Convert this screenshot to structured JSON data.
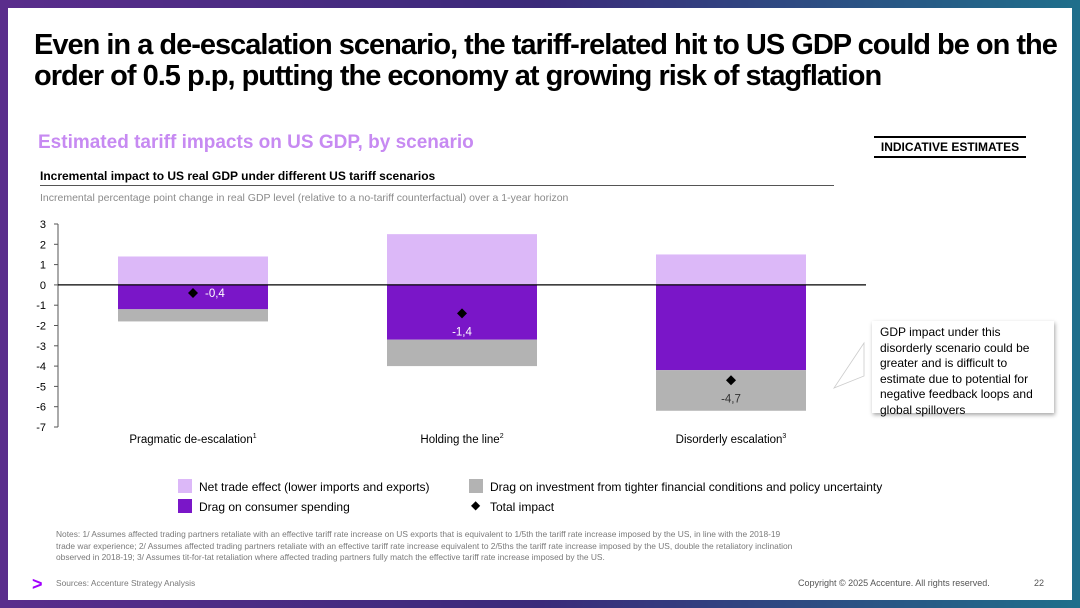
{
  "slide": {
    "title": "Even in a de-escalation scenario, the tariff-related hit to US GDP could be on the order of 0.5 p.p, putting the economy at growing risk of stagflation",
    "subtitle": "Estimated tariff impacts on US GDP, by scenario",
    "tag": "INDICATIVE ESTIMATES",
    "callout": "GDP impact under this disorderly scenario could be greater and is difficult to estimate due to potential for negative feedback loops and global spillovers",
    "notes": "Notes: 1/ Assumes affected trading partners retaliate with an effective tariff rate increase on US exports that is equivalent to 1/5th the tariff rate increase imposed by the US, in line with the 2018-19 trade war experience; 2/ Assumes affected trading partners retaliate with an effective tariff rate increase equivalent to 2/5ths the tariff rate increase imposed by the US, double the retaliatory inclination observed in 2018-19; 3/ Assumes tit-for-tat retaliation where affected trading partners fully match the effective tariff rate increase imposed by the US.",
    "sources": "Sources: Accenture Strategy Analysis",
    "logo": ">",
    "copyright": "Copyright © 2025 Accenture. All rights reserved.",
    "page": "22"
  },
  "chart_data": {
    "type": "bar",
    "stacked": true,
    "title": "Incremental impact to US real GDP under different US tariff scenarios",
    "subtitle": "Incremental percentage point change in real GDP level (relative to a no-tariff counterfactual) over a 1-year horizon",
    "categories": [
      "Pragmatic de-escalation",
      "Holding the line",
      "Disorderly escalation"
    ],
    "superscripts": [
      "1",
      "2",
      "3"
    ],
    "ylim": [
      -7,
      3
    ],
    "yticks": [
      3,
      2,
      1,
      0,
      -1,
      -2,
      -3,
      -4,
      -5,
      -6,
      -7
    ],
    "series": [
      {
        "name": "Net trade effect (lower imports and exports)",
        "color": "#dcb8f8",
        "values": [
          1.4,
          2.5,
          1.5
        ]
      },
      {
        "name": "Drag on consumer spending",
        "color": "#7a16c8",
        "values": [
          -1.2,
          -2.7,
          -4.2
        ]
      },
      {
        "name": "Drag on investment from tighter financial conditions and policy uncertainty",
        "color": "#b3b3b3",
        "values": [
          -0.6,
          -1.3,
          -2.0
        ]
      }
    ],
    "total": {
      "name": "Total impact",
      "values": [
        -0.4,
        -1.4,
        -4.7
      ],
      "labels": [
        "-0,4",
        "-1,4",
        "-4,7"
      ]
    }
  }
}
